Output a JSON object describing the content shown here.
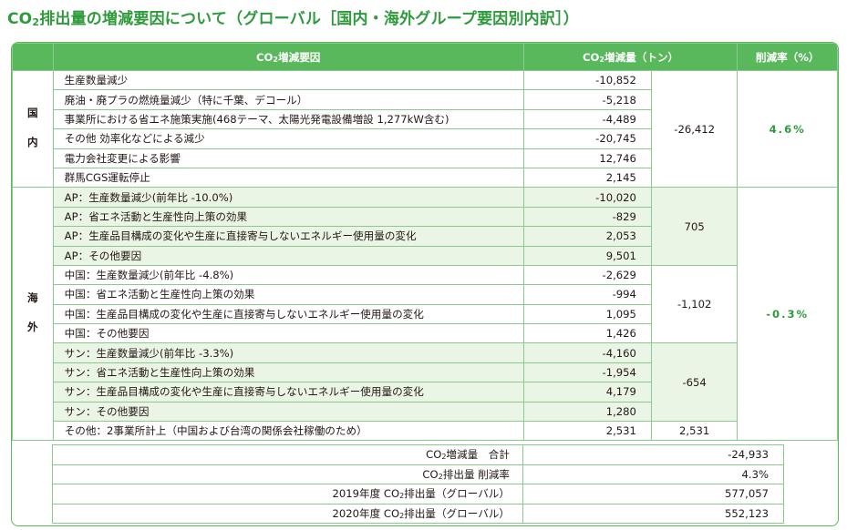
{
  "title": {
    "prefix": "CO",
    "sub": "2",
    "text": "排出量の増減要因について（グローバル［国内・海外グループ要因別内訳］）"
  },
  "headers": {
    "factor_prefix": "CO",
    "factor_sub": "2",
    "factor_text": "増減要因",
    "amount_prefix": "CO",
    "amount_sub": "2",
    "amount_text": "増減量（トン）",
    "rate": "削減率（%）"
  },
  "domestic": {
    "label": "国内",
    "rows": [
      {
        "factor": "生産数量減少",
        "value": "-10,852"
      },
      {
        "factor": "廃油・廃プラの燃焼量減少（特に千葉、デコール）",
        "value": "-5,218"
      },
      {
        "factor": "事業所における省エネ施策実施(468テーマ、太陽光発電設備増設 1,277kW含む)",
        "value": "-4,489"
      },
      {
        "factor": "その他 効率化などによる減少",
        "value": "-20,745"
      },
      {
        "factor": "電力会社変更による影響",
        "value": "12,746"
      },
      {
        "factor": "群馬CGS運転停止",
        "value": "2,145"
      }
    ],
    "subtotal": "-26,412",
    "rate": "4.6%"
  },
  "overseas": {
    "label": "海外",
    "groups": [
      {
        "rows": [
          {
            "factor": "AP：生産数量減少(前年比 -10.0%)",
            "value": "-10,020"
          },
          {
            "factor": "AP：省エネ活動と生産性向上策の効果",
            "value": "-829"
          },
          {
            "factor": "AP：生産品目構成の変化や生産に直接寄与しないエネルギー使用量の変化",
            "value": "2,053"
          },
          {
            "factor": "AP：その他要因",
            "value": "9,501"
          }
        ],
        "subtotal": "705"
      },
      {
        "rows": [
          {
            "factor": "中国：生産数量減少(前年比 -4.8%)",
            "value": "-2,629"
          },
          {
            "factor": "中国：省エネ活動と生産性向上策の効果",
            "value": "-994"
          },
          {
            "factor": "中国：生産品目構成の変化や生産に直接寄与しないエネルギー使用量の変化",
            "value": "1,095"
          },
          {
            "factor": "中国：その他要因",
            "value": "1,426"
          }
        ],
        "subtotal": "-1,102"
      },
      {
        "rows": [
          {
            "factor": "サン：生産数量減少(前年比 -3.3%)",
            "value": "-4,160"
          },
          {
            "factor": "サン：省エネ活動と生産性向上策の効果",
            "value": "-1,954"
          },
          {
            "factor": "サン：生産品目構成の変化や生産に直接寄与しないエネルギー使用量の変化",
            "value": "4,179"
          },
          {
            "factor": "サン：その他要因",
            "value": "1,280"
          }
        ],
        "subtotal": "-654"
      }
    ],
    "other": {
      "factor": "その他：2事業所計上（中国および台湾の関係会社稼働のため）",
      "value": "2,531",
      "subtotal": "2,531"
    },
    "rate": "-0.3%"
  },
  "summary": [
    {
      "prefix": "CO",
      "sub": "2",
      "label": "増減量　合計",
      "value": "-24,933"
    },
    {
      "prefix": "CO",
      "sub": "2",
      "label": "排出量 削減率",
      "value": "4.3%"
    },
    {
      "prefix": "2019年度 CO",
      "sub": "2",
      "label": "排出量（グローバル）",
      "value": "577,057"
    },
    {
      "prefix": "2020年度 CO",
      "sub": "2",
      "label": "排出量（グローバル）",
      "value": "552,123"
    }
  ]
}
